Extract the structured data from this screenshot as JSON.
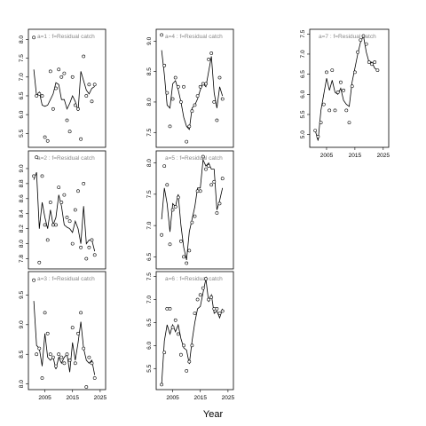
{
  "xlabel": "Year",
  "chart_data": [
    {
      "type": "line",
      "title": "a=1  :  f=Residual catch",
      "xlim": [
        2000,
        2026
      ],
      "ylim": [
        5.2,
        8.2
      ],
      "xticks": [],
      "yticks": [
        5.5,
        6.0,
        6.5,
        7.0,
        7.5,
        8.0
      ],
      "ytick_labels": [
        "5.5",
        "6.0",
        "6.5",
        "7.0",
        "7.5",
        "8.0"
      ],
      "points": {
        "x": [
          2001,
          2002,
          2003,
          2004,
          2005,
          2006,
          2007,
          2008,
          2009,
          2010,
          2011,
          2012,
          2013,
          2014,
          2015,
          2016,
          2017,
          2018,
          2019,
          2020,
          2021,
          2022,
          2023
        ],
        "y": [
          8.05,
          6.5,
          6.55,
          6.5,
          5.4,
          5.3,
          7.15,
          6.15,
          6.7,
          7.2,
          7.0,
          7.1,
          5.85,
          5.55,
          7.0,
          6.25,
          6.15,
          5.35,
          7.55,
          6.5,
          6.8,
          6.35,
          6.8
        ]
      },
      "line": {
        "x": [
          2001,
          2002,
          2003,
          2004,
          2005,
          2006,
          2007,
          2008,
          2009,
          2010,
          2011,
          2012,
          2013,
          2014,
          2015,
          2016,
          2017,
          2018,
          2019,
          2020,
          2021,
          2022,
          2023
        ],
        "y": [
          7.2,
          6.5,
          6.6,
          6.25,
          6.22,
          6.25,
          6.4,
          6.55,
          6.85,
          6.8,
          6.4,
          6.4,
          6.15,
          6.3,
          6.5,
          6.35,
          6.1,
          7.15,
          6.9,
          6.65,
          6.55,
          6.7,
          6.75
        ]
      }
    },
    {
      "type": "line",
      "title": "a=2  :  f=Residual catch",
      "xlim": [
        2000,
        2026
      ],
      "ylim": [
        7.7,
        9.2
      ],
      "xticks": [],
      "yticks": [
        7.8,
        8.0,
        8.2,
        8.4,
        8.6,
        8.8,
        9.0
      ],
      "ytick_labels": [
        "7.8",
        "8.0",
        "8.2",
        "8.4",
        "8.6",
        "8.8",
        "9.0"
      ],
      "points": {
        "x": [
          2001,
          2002,
          2003,
          2004,
          2005,
          2006,
          2007,
          2008,
          2009,
          2010,
          2011,
          2012,
          2013,
          2014,
          2015,
          2016,
          2017,
          2018,
          2019,
          2020,
          2021,
          2022,
          2023
        ],
        "y": [
          8.9,
          9.15,
          7.75,
          8.9,
          8.25,
          8.05,
          8.55,
          8.25,
          8.25,
          8.75,
          8.55,
          8.65,
          8.35,
          8.3,
          8.0,
          8.45,
          8.7,
          7.95,
          8.8,
          7.8,
          7.95,
          8.05,
          7.85
        ]
      },
      "line": {
        "x": [
          2001,
          2002,
          2003,
          2004,
          2005,
          2006,
          2007,
          2008,
          2009,
          2010,
          2011,
          2012,
          2013,
          2014,
          2015,
          2016,
          2017,
          2018,
          2019,
          2020,
          2021,
          2022,
          2023
        ],
        "y": [
          8.85,
          8.95,
          8.2,
          8.55,
          8.35,
          8.2,
          8.45,
          8.25,
          8.35,
          8.65,
          8.5,
          8.25,
          8.22,
          8.2,
          8.15,
          8.3,
          8.2,
          8.0,
          8.5,
          8.0,
          8.05,
          8.05,
          7.9
        ]
      }
    },
    {
      "type": "line",
      "title": "a=3  :  f=Residual catch",
      "xlim": [
        2000,
        2026
      ],
      "ylim": [
        7.95,
        9.85
      ],
      "xticks": [
        2005,
        2015,
        2025
      ],
      "xtick_labels": [
        "2005",
        "2015",
        "2025"
      ],
      "yticks": [
        8.0,
        8.5,
        9.0,
        9.5
      ],
      "ytick_labels": [
        "8.0",
        "8.5",
        "9.0",
        "9.5"
      ],
      "points": {
        "x": [
          2001,
          2002,
          2003,
          2004,
          2005,
          2006,
          2007,
          2008,
          2009,
          2010,
          2011,
          2012,
          2013,
          2014,
          2015,
          2016,
          2017,
          2018,
          2019,
          2020,
          2021,
          2022,
          2023
        ],
        "y": [
          9.75,
          8.5,
          8.6,
          8.1,
          9.2,
          8.85,
          8.5,
          8.45,
          8.3,
          8.5,
          8.45,
          8.35,
          8.5,
          8.4,
          8.95,
          8.35,
          8.85,
          9.2,
          8.6,
          7.95,
          8.45,
          8.35,
          8.1
        ]
      },
      "line": {
        "x": [
          2001,
          2002,
          2003,
          2004,
          2005,
          2006,
          2007,
          2008,
          2009,
          2010,
          2011,
          2012,
          2013,
          2014,
          2015,
          2016,
          2017,
          2018,
          2019,
          2020,
          2021,
          2022,
          2023
        ],
        "y": [
          9.4,
          8.65,
          8.6,
          8.3,
          8.85,
          8.45,
          8.4,
          8.45,
          8.25,
          8.45,
          8.35,
          8.45,
          8.5,
          8.2,
          8.7,
          8.4,
          8.7,
          9.05,
          8.6,
          8.4,
          8.35,
          8.4,
          8.15
        ]
      }
    },
    {
      "type": "line",
      "title": "a=4  :  f=Residual catch",
      "xlim": [
        2000,
        2026
      ],
      "ylim": [
        7.3,
        9.15
      ],
      "xticks": [],
      "yticks": [
        7.5,
        8.0,
        8.5,
        9.0
      ],
      "ytick_labels": [
        "7.5",
        "8.0",
        "8.5",
        "9.0"
      ],
      "points": {
        "x": [
          2001,
          2002,
          2003,
          2004,
          2005,
          2006,
          2007,
          2008,
          2009,
          2010,
          2011,
          2012,
          2013,
          2014,
          2015,
          2016,
          2017,
          2018,
          2019,
          2020,
          2021,
          2022,
          2023
        ],
        "y": [
          9.1,
          8.6,
          8.15,
          7.6,
          8.05,
          8.4,
          8.25,
          8.0,
          8.25,
          7.35,
          7.6,
          7.85,
          7.95,
          8.1,
          8.25,
          8.3,
          8.3,
          8.7,
          8.8,
          8.0,
          7.7,
          8.4,
          8.05
        ]
      },
      "line": {
        "x": [
          2001,
          2002,
          2003,
          2004,
          2005,
          2006,
          2007,
          2008,
          2009,
          2010,
          2011,
          2012,
          2013,
          2014,
          2015,
          2016,
          2017,
          2018,
          2019,
          2020,
          2021,
          2022,
          2023
        ],
        "y": [
          8.85,
          8.45,
          7.95,
          7.9,
          8.3,
          8.35,
          8.2,
          8.0,
          7.75,
          7.6,
          7.55,
          7.9,
          7.95,
          8.05,
          8.2,
          8.3,
          8.25,
          8.5,
          8.75,
          8.15,
          7.9,
          8.25,
          8.1
        ]
      }
    },
    {
      "type": "line",
      "title": "a=5  :  f=Residual catch",
      "xlim": [
        2000,
        2026
      ],
      "ylim": [
        6.35,
        8.15
      ],
      "xticks": [],
      "yticks": [
        6.5,
        7.0,
        7.5,
        8.0
      ],
      "ytick_labels": [
        "6.5",
        "7.0",
        "7.5",
        "8.0"
      ],
      "points": {
        "x": [
          2001,
          2002,
          2003,
          2004,
          2005,
          2006,
          2007,
          2008,
          2009,
          2010,
          2011,
          2012,
          2013,
          2014,
          2015,
          2016,
          2017,
          2018,
          2019,
          2020,
          2021,
          2022,
          2023
        ],
        "y": [
          6.85,
          7.95,
          7.65,
          6.7,
          7.25,
          7.3,
          7.45,
          6.75,
          6.5,
          6.4,
          6.6,
          7.05,
          7.15,
          7.55,
          7.55,
          8.1,
          7.9,
          7.95,
          7.65,
          7.7,
          7.2,
          7.35,
          7.75
        ]
      },
      "line": {
        "x": [
          2001,
          2002,
          2003,
          2004,
          2005,
          2006,
          2007,
          2008,
          2009,
          2010,
          2011,
          2012,
          2013,
          2014,
          2015,
          2016,
          2017,
          2018,
          2019,
          2020,
          2021,
          2022,
          2023
        ],
        "y": [
          7.1,
          7.6,
          7.35,
          6.9,
          7.35,
          7.3,
          7.5,
          7.0,
          6.65,
          6.45,
          6.9,
          7.1,
          7.3,
          7.6,
          7.6,
          8.05,
          7.95,
          8.0,
          7.9,
          7.9,
          7.25,
          7.4,
          7.6
        ]
      }
    },
    {
      "type": "line",
      "title": "a=6  :  f=Residual catch",
      "xlim": [
        2000,
        2026
      ],
      "ylim": [
        5.1,
        7.55
      ],
      "xticks": [
        2005,
        2015,
        2025
      ],
      "xtick_labels": [
        "2005",
        "2015",
        "2025"
      ],
      "yticks": [
        5.5,
        6.0,
        6.5,
        7.0,
        7.5
      ],
      "ytick_labels": [
        "5.5",
        "6.0",
        "6.5",
        "7.0",
        "7.5"
      ],
      "points": {
        "x": [
          2001,
          2002,
          2003,
          2004,
          2005,
          2006,
          2007,
          2008,
          2009,
          2010,
          2011,
          2012,
          2013,
          2014,
          2015,
          2016,
          2017,
          2018,
          2019,
          2020,
          2021,
          2022,
          2023
        ],
        "y": [
          5.15,
          5.85,
          6.8,
          6.8,
          6.4,
          6.55,
          6.25,
          5.8,
          6.0,
          5.45,
          5.65,
          6.0,
          6.7,
          7.0,
          7.1,
          7.25,
          7.45,
          7.0,
          7.05,
          6.8,
          6.8,
          6.7,
          6.75
        ]
      },
      "line": {
        "x": [
          2001,
          2002,
          2003,
          2004,
          2005,
          2006,
          2007,
          2008,
          2009,
          2010,
          2011,
          2012,
          2013,
          2014,
          2015,
          2016,
          2017,
          2018,
          2019,
          2020,
          2021,
          2022,
          2023
        ],
        "y": [
          5.15,
          6.1,
          6.45,
          6.25,
          6.45,
          6.3,
          6.45,
          6.15,
          5.95,
          5.9,
          5.6,
          6.1,
          6.5,
          6.8,
          6.85,
          7.15,
          7.45,
          6.95,
          7.1,
          6.7,
          6.75,
          6.6,
          6.8
        ]
      }
    },
    {
      "type": "line",
      "title": "a=7  :  f=Residual catch",
      "xlim": [
        2000,
        2026
      ],
      "ylim": [
        4.75,
        7.55
      ],
      "xticks": [
        2005,
        2015,
        2025
      ],
      "xtick_labels": [
        "2005",
        "2015",
        "2025"
      ],
      "yticks": [
        5.0,
        5.5,
        6.0,
        6.5,
        7.0,
        7.5
      ],
      "ytick_labels": [
        "5.0",
        "5.5",
        "6.0",
        "6.5",
        "7.0",
        "7.5"
      ],
      "points": {
        "x": [
          2001,
          2002,
          2003,
          2004,
          2005,
          2006,
          2007,
          2008,
          2009,
          2010,
          2011,
          2012,
          2013,
          2014,
          2015,
          2016,
          2017,
          2018,
          2019,
          2020,
          2021,
          2022,
          2023
        ],
        "y": [
          5.1,
          4.95,
          5.3,
          5.75,
          6.55,
          5.6,
          6.6,
          5.6,
          6.05,
          6.3,
          6.1,
          5.6,
          5.3,
          6.2,
          6.55,
          7.05,
          7.35,
          7.45,
          7.25,
          6.8,
          6.75,
          6.8,
          6.6
        ]
      },
      "line": {
        "x": [
          2001,
          2002,
          2003,
          2004,
          2005,
          2006,
          2007,
          2008,
          2009,
          2010,
          2011,
          2012,
          2013,
          2014,
          2015,
          2016,
          2017,
          2018,
          2019,
          2020,
          2021,
          2022,
          2023
        ],
        "y": [
          5.1,
          4.85,
          5.6,
          6.0,
          6.4,
          6.1,
          6.35,
          6.05,
          6.0,
          6.15,
          5.85,
          5.75,
          5.7,
          6.3,
          6.65,
          7.0,
          7.3,
          7.45,
          7.05,
          6.8,
          6.8,
          6.65,
          6.6
        ]
      }
    }
  ]
}
